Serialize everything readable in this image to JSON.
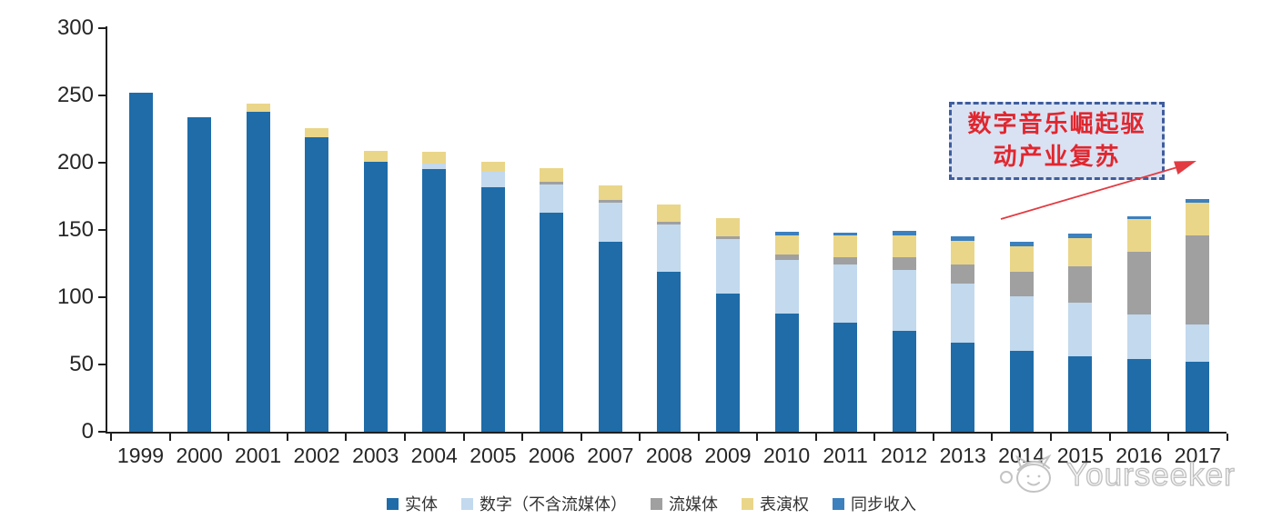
{
  "chart_data": {
    "type": "bar",
    "stacked": true,
    "title": "",
    "xlabel": "",
    "ylabel": "",
    "categories": [
      "1999",
      "2000",
      "2001",
      "2002",
      "2003",
      "2004",
      "2005",
      "2006",
      "2007",
      "2008",
      "2009",
      "2010",
      "2011",
      "2012",
      "2013",
      "2014",
      "2015",
      "2016",
      "2017"
    ],
    "series": [
      {
        "key": "physical",
        "name": "实体",
        "color": "#1F6CA8",
        "values": [
          252,
          234,
          238,
          219,
          201,
          195,
          182,
          163,
          141,
          119,
          103,
          88,
          81,
          75,
          66,
          60,
          56,
          54,
          52
        ]
      },
      {
        "key": "digital-excl-streaming",
        "name": "数字（不含流媒体）",
        "color": "#C2D9EE",
        "values": [
          0,
          0,
          0,
          0,
          0,
          4,
          11,
          21,
          29,
          35,
          40,
          40,
          43,
          45,
          44,
          41,
          40,
          33,
          28
        ]
      },
      {
        "key": "streaming",
        "name": "流媒体",
        "color": "#A0A0A0",
        "values": [
          0,
          0,
          0,
          0,
          0,
          0,
          0,
          2,
          2,
          2,
          2,
          4,
          6,
          10,
          14,
          18,
          27,
          47,
          66
        ]
      },
      {
        "key": "performance-rights",
        "name": "表演权",
        "color": "#EAD689",
        "values": [
          0,
          0,
          6,
          7,
          8,
          9,
          8,
          10,
          11,
          13,
          14,
          14,
          16,
          16,
          18,
          19,
          21,
          24,
          24
        ]
      },
      {
        "key": "sync-revenue",
        "name": "同步收入",
        "color": "#3C80BE",
        "values": [
          0,
          0,
          0,
          0,
          0,
          0,
          0,
          0,
          0,
          0,
          0,
          3,
          2,
          3,
          3,
          3,
          3,
          2,
          3
        ]
      }
    ],
    "ylim": [
      0,
      300
    ],
    "yticks": [
      0,
      50,
      100,
      150,
      200,
      250,
      300
    ],
    "grid": false,
    "legend_position": "bottom"
  },
  "annotation": {
    "line1": "数字音乐崛起驱",
    "line2": "动产业复苏",
    "text_color": "#E0272F",
    "box_fill": "#D9E2F3",
    "box_border": "#3F5D9E",
    "arrow_color": "#E23B41"
  },
  "watermark": {
    "text": "Yourseeker",
    "logo": "cat-headphones-logo",
    "color": "#bfbfbf"
  }
}
